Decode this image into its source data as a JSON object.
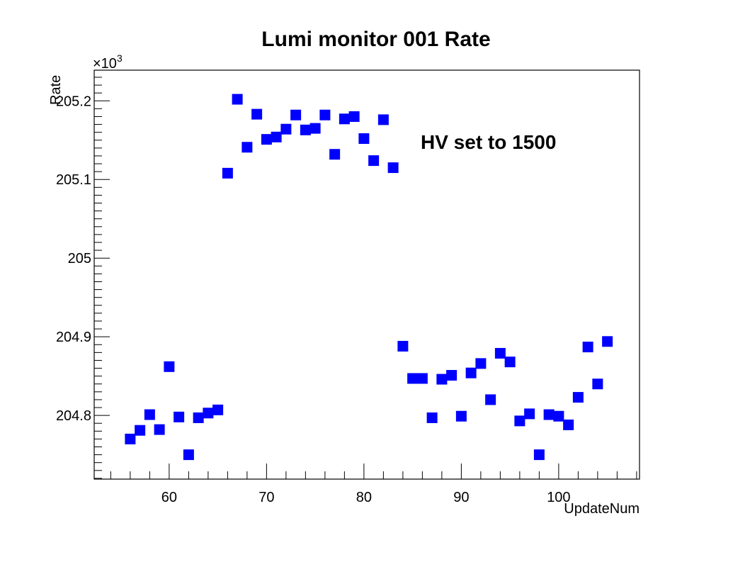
{
  "chart_data": {
    "type": "scatter",
    "title": "Lumi monitor 001 Rate",
    "xlabel": "UpdateNum",
    "ylabel": "Rate",
    "y_exponent_label": "×10",
    "y_exponent_power": "3",
    "xlim": [
      52.3,
      108.3
    ],
    "ylim": [
      204.719,
      205.239
    ],
    "x_ticks": [
      60,
      70,
      80,
      90,
      100
    ],
    "x_tick_labels": [
      "60",
      "70",
      "80",
      "90",
      "100"
    ],
    "y_ticks": [
      204.8,
      204.9,
      205.0,
      205.1,
      205.2
    ],
    "y_tick_labels": [
      "204.8",
      "204.9",
      "205",
      "205.1",
      "205.2"
    ],
    "grid": false,
    "annotation": "HV set to  1500",
    "marker_color": "#0000ff",
    "series": [
      {
        "x": [
          56,
          57,
          58,
          59,
          60,
          61,
          62,
          63,
          64,
          65,
          66,
          67,
          68,
          69,
          70,
          71,
          72,
          73,
          74,
          75,
          76,
          77,
          78,
          79,
          80,
          81,
          82,
          83,
          84,
          85,
          86,
          87,
          88,
          89,
          90,
          91,
          92,
          93,
          94,
          95,
          96,
          97,
          98,
          99,
          100,
          101,
          102,
          103,
          104,
          105
        ],
        "y": [
          204.77,
          204.781,
          204.801,
          204.782,
          204.862,
          204.798,
          204.75,
          204.797,
          204.803,
          204.807,
          205.108,
          205.202,
          205.141,
          205.183,
          205.151,
          205.154,
          205.164,
          205.182,
          205.163,
          205.165,
          205.182,
          205.132,
          205.177,
          205.18,
          205.152,
          205.124,
          205.176,
          205.115,
          204.888,
          204.847,
          204.847,
          204.797,
          204.846,
          204.851,
          204.799,
          204.854,
          204.866,
          204.82,
          204.879,
          204.868,
          204.793,
          204.802,
          204.75,
          204.801,
          204.799,
          204.788,
          204.823,
          204.887,
          204.84,
          204.894
        ]
      }
    ]
  }
}
